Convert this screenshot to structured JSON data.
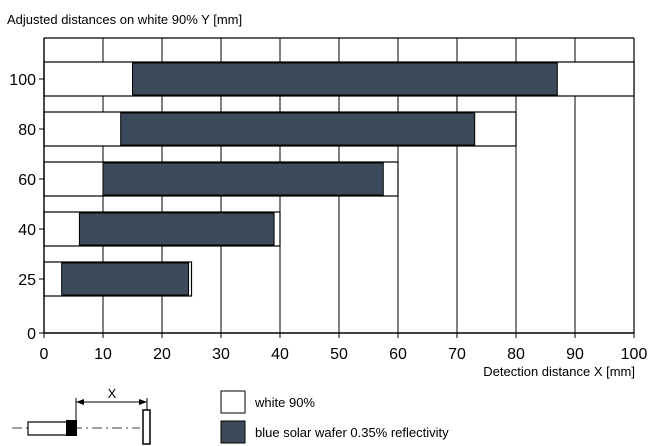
{
  "chart_data": {
    "type": "bar",
    "title": "Adjusted distances on white 90% Y [mm]",
    "xlabel": "Detection distance X [mm]",
    "ylabel": "",
    "xlim": [
      0,
      100
    ],
    "x_ticks": [
      "0",
      "10",
      "20",
      "30",
      "40",
      "50",
      "60",
      "70",
      "80",
      "90",
      "100"
    ],
    "y_ticks": [
      "0",
      "25",
      "40",
      "60",
      "80",
      "100"
    ],
    "categories": [
      "100",
      "80",
      "60",
      "40",
      "25"
    ],
    "grid": true,
    "legend_position": "bottom",
    "series": [
      {
        "name": "white 90%",
        "color": "#ffffff",
        "ranges": [
          [
            0,
            100
          ],
          [
            0,
            80
          ],
          [
            0,
            60
          ],
          [
            0,
            40
          ],
          [
            0,
            25
          ]
        ]
      },
      {
        "name": "blue solar wafer 0.35% reflectivity",
        "color": "#3b4b5b",
        "ranges": [
          [
            15,
            87
          ],
          [
            13,
            73
          ],
          [
            10,
            57.5
          ],
          [
            6,
            39
          ],
          [
            3,
            24.5
          ]
        ]
      }
    ],
    "diagram_labels": {
      "x_marker": "X"
    }
  }
}
